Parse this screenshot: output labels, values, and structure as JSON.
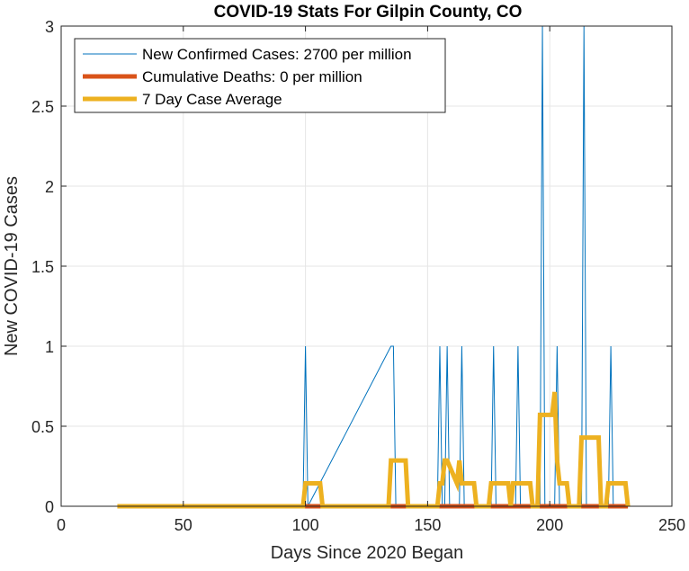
{
  "chart_data": {
    "type": "line",
    "title": "COVID-19 Stats For Gilpin County, CO",
    "xlabel": "Days Since 2020 Began",
    "ylabel": "New COVID-19 Cases",
    "xlim": [
      0,
      250
    ],
    "ylim": [
      0,
      3
    ],
    "xticks": [
      0,
      50,
      100,
      150,
      200,
      250
    ],
    "yticks": [
      0,
      0.5,
      1,
      1.5,
      2,
      2.5,
      3
    ],
    "xtick_labels": [
      "0",
      "50",
      "100",
      "150",
      "200",
      "250"
    ],
    "ytick_labels": [
      "0",
      "0.5",
      "1",
      "1.5",
      "2",
      "2.5",
      "3"
    ],
    "grid": true,
    "legend_position": "top-left",
    "series": [
      {
        "name": "New Confirmed Cases: 2700 per million",
        "color": "#0072BD",
        "style": "thin",
        "x": [
          23,
          99,
          100,
          101,
          135,
          136,
          137,
          154,
          155,
          156,
          157,
          158,
          159,
          163,
          164,
          165,
          176,
          177,
          178,
          186,
          187,
          188,
          196,
          197,
          198,
          202,
          203,
          204,
          213,
          214,
          215,
          224,
          225,
          226,
          232
        ],
        "y": [
          0,
          0,
          1,
          0,
          1,
          1,
          0,
          0,
          1,
          0,
          0,
          1,
          0,
          0,
          1,
          0,
          0,
          1,
          0,
          0,
          1,
          0,
          0,
          3,
          0,
          0,
          1,
          0,
          0,
          3,
          0,
          0,
          1,
          0,
          0
        ]
      },
      {
        "name": "Cumulative Deaths: 0 per million",
        "color": "#D95319",
        "style": "thick",
        "x": [
          23,
          232
        ],
        "y": [
          0,
          0
        ]
      },
      {
        "name": "7 Day Case Average",
        "color": "#EDB120",
        "style": "thick",
        "x": [
          23,
          99,
          100,
          106,
          107,
          134,
          135,
          141,
          142,
          154,
          155,
          156,
          157,
          158,
          162,
          163,
          164,
          165,
          169,
          170,
          175,
          176,
          183,
          184,
          185,
          186,
          192,
          193,
          195,
          196,
          201,
          202,
          203,
          204,
          207,
          208,
          212,
          213,
          220,
          221,
          223,
          224,
          231,
          232
        ],
        "y": [
          0,
          0,
          0.143,
          0.143,
          0,
          0,
          0.286,
          0.286,
          0,
          0,
          0.143,
          0.143,
          0.286,
          0.286,
          0.143,
          0.286,
          0.143,
          0.143,
          0.143,
          0,
          0,
          0.143,
          0.143,
          0,
          0.143,
          0.143,
          0.143,
          0,
          0,
          0.571,
          0.571,
          0.714,
          0.286,
          0.143,
          0.143,
          0,
          0,
          0.429,
          0.429,
          0,
          0,
          0.143,
          0.143,
          0
        ]
      }
    ]
  }
}
